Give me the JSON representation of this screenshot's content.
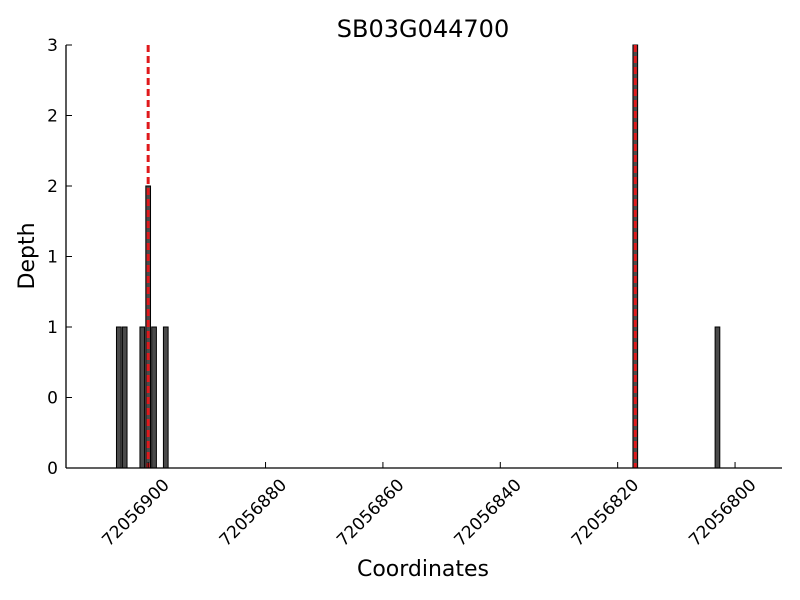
{
  "chart_data": {
    "type": "bar",
    "title": "SB03G044700",
    "xlabel": "Coordinates",
    "ylabel": "Depth",
    "x_reversed": true,
    "xlim": [
      72056914,
      72056792
    ],
    "ylim": [
      0,
      3
    ],
    "xticks": [
      72056900,
      72056880,
      72056860,
      72056840,
      72056820,
      72056800
    ],
    "xtick_labels": [
      "72056900",
      "72056880",
      "72056860",
      "72056840",
      "72056820",
      "72056800"
    ],
    "yticks": [
      0,
      0.5,
      1,
      1.5,
      2,
      2.5,
      3
    ],
    "ytick_labels": [
      "0",
      "0",
      "1",
      "1",
      "2",
      "2",
      "3"
    ],
    "grid": false,
    "bar_color": "#4a4a4a",
    "marker_color": "#e0191c",
    "points": [
      {
        "x": 72056905,
        "depth": 1
      },
      {
        "x": 72056904,
        "depth": 1
      },
      {
        "x": 72056901,
        "depth": 1
      },
      {
        "x": 72056900,
        "depth": 2
      },
      {
        "x": 72056899,
        "depth": 1
      },
      {
        "x": 72056897,
        "depth": 1
      },
      {
        "x": 72056817,
        "depth": 3
      },
      {
        "x": 72056803,
        "depth": 1
      }
    ],
    "markers": [
      72056900,
      72056817
    ]
  }
}
